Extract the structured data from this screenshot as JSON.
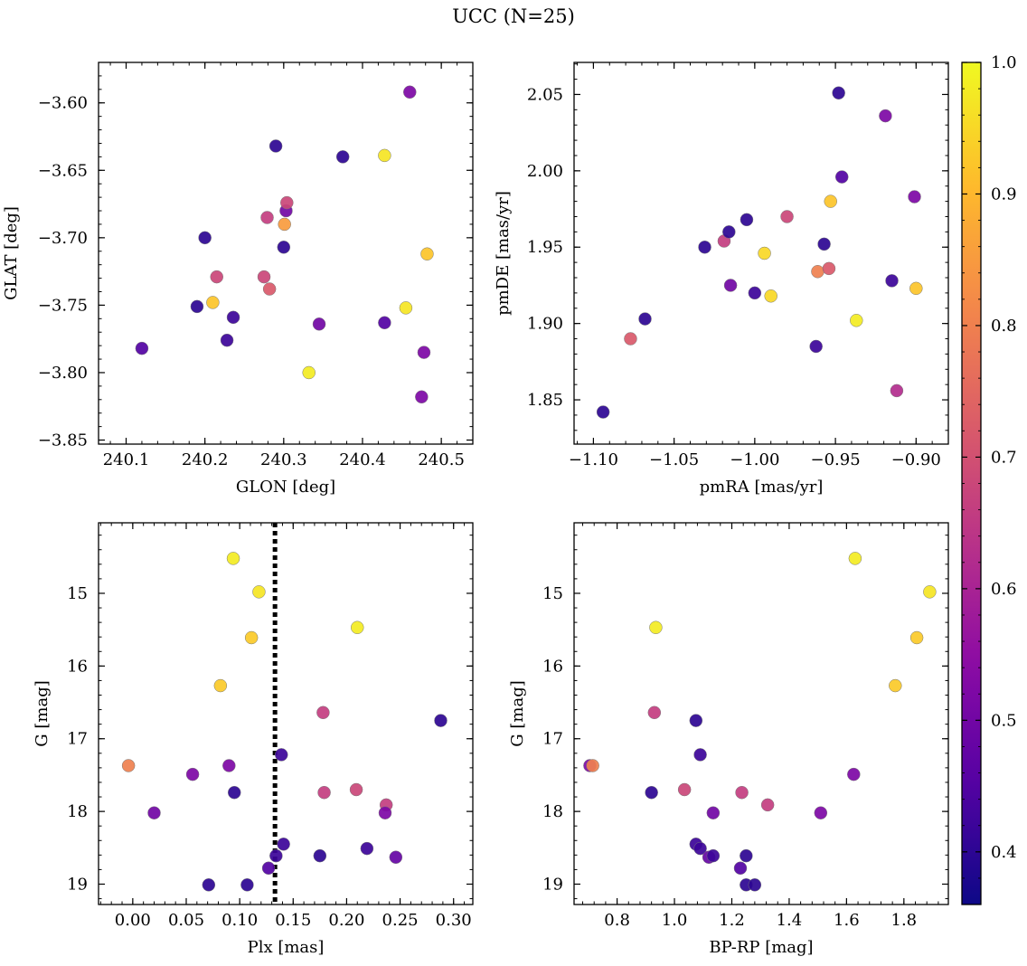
{
  "suptitle": "UCC (N=25)",
  "colorbar": {
    "range": [
      0.36,
      1.0
    ],
    "ticks": [
      0.4,
      0.5,
      0.6,
      0.7,
      0.8,
      0.9,
      1.0
    ],
    "colormap": "plasma"
  },
  "chart_data": [
    {
      "type": "scatter",
      "title": "",
      "xlabel": "GLON [deg]",
      "ylabel": "GLAT [deg]",
      "xlim": [
        240.065,
        240.54
      ],
      "ylim": [
        -3.853,
        -3.57
      ],
      "xticks": [
        240.1,
        240.2,
        240.3,
        240.4,
        240.5
      ],
      "yticks": [
        -3.85,
        -3.8,
        -3.75,
        -3.7,
        -3.65,
        -3.6
      ],
      "points": [
        {
          "x": 240.12,
          "y": -3.782,
          "c": 0.45
        },
        {
          "x": 240.19,
          "y": -3.751,
          "c": 0.4
        },
        {
          "x": 240.2,
          "y": -3.7,
          "c": 0.4
        },
        {
          "x": 240.21,
          "y": -3.748,
          "c": 0.92
        },
        {
          "x": 240.215,
          "y": -3.729,
          "c": 0.68
        },
        {
          "x": 240.228,
          "y": -3.776,
          "c": 0.42
        },
        {
          "x": 240.236,
          "y": -3.759,
          "c": 0.42
        },
        {
          "x": 240.275,
          "y": -3.729,
          "c": 0.68
        },
        {
          "x": 240.279,
          "y": -3.685,
          "c": 0.66
        },
        {
          "x": 240.282,
          "y": -3.738,
          "c": 0.72
        },
        {
          "x": 240.29,
          "y": -3.632,
          "c": 0.4
        },
        {
          "x": 240.3,
          "y": -3.707,
          "c": 0.4
        },
        {
          "x": 240.301,
          "y": -3.69,
          "c": 0.85
        },
        {
          "x": 240.303,
          "y": -3.68,
          "c": 0.5
        },
        {
          "x": 240.304,
          "y": -3.674,
          "c": 0.68
        },
        {
          "x": 240.332,
          "y": -3.8,
          "c": 0.98
        },
        {
          "x": 240.345,
          "y": -3.764,
          "c": 0.5
        },
        {
          "x": 240.375,
          "y": -3.64,
          "c": 0.4
        },
        {
          "x": 240.428,
          "y": -3.639,
          "c": 0.97
        },
        {
          "x": 240.428,
          "y": -3.763,
          "c": 0.45
        },
        {
          "x": 240.455,
          "y": -3.752,
          "c": 0.97
        },
        {
          "x": 240.46,
          "y": -3.592,
          "c": 0.52
        },
        {
          "x": 240.475,
          "y": -3.818,
          "c": 0.52
        },
        {
          "x": 240.478,
          "y": -3.785,
          "c": 0.52
        },
        {
          "x": 240.482,
          "y": -3.712,
          "c": 0.92
        }
      ]
    },
    {
      "type": "scatter",
      "title": "",
      "xlabel": "pmRA [mas/yr]",
      "ylabel": "pmDE [mas/yr]",
      "xlim": [
        -1.112,
        -0.88
      ],
      "ylim": [
        1.821,
        2.071
      ],
      "xticks": [
        -1.1,
        -1.05,
        -1.0,
        -0.95,
        -0.9
      ],
      "yticks": [
        1.85,
        1.9,
        1.95,
        2.0,
        2.05
      ],
      "points": [
        {
          "x": -1.094,
          "y": 1.842,
          "c": 0.4
        },
        {
          "x": -1.077,
          "y": 1.89,
          "c": 0.72
        },
        {
          "x": -1.068,
          "y": 1.903,
          "c": 0.4
        },
        {
          "x": -1.031,
          "y": 1.95,
          "c": 0.4
        },
        {
          "x": -1.019,
          "y": 1.954,
          "c": 0.66
        },
        {
          "x": -1.016,
          "y": 1.96,
          "c": 0.4
        },
        {
          "x": -1.015,
          "y": 1.925,
          "c": 0.5
        },
        {
          "x": -1.005,
          "y": 1.968,
          "c": 0.4
        },
        {
          "x": -1.0,
          "y": 1.92,
          "c": 0.42
        },
        {
          "x": -0.994,
          "y": 1.946,
          "c": 0.95
        },
        {
          "x": -0.99,
          "y": 1.918,
          "c": 0.95
        },
        {
          "x": -0.98,
          "y": 1.97,
          "c": 0.68
        },
        {
          "x": -0.962,
          "y": 1.885,
          "c": 0.42
        },
        {
          "x": -0.961,
          "y": 1.934,
          "c": 0.8
        },
        {
          "x": -0.957,
          "y": 1.952,
          "c": 0.4
        },
        {
          "x": -0.954,
          "y": 1.936,
          "c": 0.72
        },
        {
          "x": -0.953,
          "y": 1.98,
          "c": 0.92
        },
        {
          "x": -0.948,
          "y": 2.051,
          "c": 0.4
        },
        {
          "x": -0.946,
          "y": 1.996,
          "c": 0.45
        },
        {
          "x": -0.937,
          "y": 1.902,
          "c": 0.98
        },
        {
          "x": -0.919,
          "y": 2.036,
          "c": 0.52
        },
        {
          "x": -0.915,
          "y": 1.928,
          "c": 0.42
        },
        {
          "x": -0.912,
          "y": 1.856,
          "c": 0.62
        },
        {
          "x": -0.901,
          "y": 1.983,
          "c": 0.52
        },
        {
          "x": -0.9,
          "y": 1.923,
          "c": 0.92
        }
      ]
    },
    {
      "type": "scatter",
      "title": "",
      "xlabel": "Plx [mas]",
      "ylabel": "G [mag]",
      "xlim": [
        -0.032,
        0.318
      ],
      "ylim": [
        19.28,
        14.03
      ],
      "y_inverted": true,
      "xticks": [
        0.0,
        0.05,
        0.1,
        0.15,
        0.2,
        0.25,
        0.3
      ],
      "yticks": [
        15,
        16,
        17,
        18,
        19
      ],
      "vline": {
        "x": 0.133,
        "style": "dotted",
        "color": "#000000"
      },
      "points": [
        {
          "x": 0.094,
          "y": 14.52,
          "c": 0.98
        },
        {
          "x": 0.118,
          "y": 14.98,
          "c": 0.97
        },
        {
          "x": 0.21,
          "y": 15.47,
          "c": 0.98
        },
        {
          "x": 0.111,
          "y": 15.61,
          "c": 0.93
        },
        {
          "x": 0.082,
          "y": 16.27,
          "c": 0.93
        },
        {
          "x": 0.178,
          "y": 16.64,
          "c": 0.66
        },
        {
          "x": 0.288,
          "y": 16.75,
          "c": 0.4
        },
        {
          "x": 0.139,
          "y": 17.22,
          "c": 0.42
        },
        {
          "x": -0.004,
          "y": 17.37,
          "c": 0.8
        },
        {
          "x": 0.09,
          "y": 17.37,
          "c": 0.52
        },
        {
          "x": 0.056,
          "y": 17.49,
          "c": 0.52
        },
        {
          "x": 0.209,
          "y": 17.7,
          "c": 0.68
        },
        {
          "x": 0.095,
          "y": 17.74,
          "c": 0.4
        },
        {
          "x": 0.179,
          "y": 17.74,
          "c": 0.66
        },
        {
          "x": 0.237,
          "y": 17.91,
          "c": 0.66
        },
        {
          "x": 0.02,
          "y": 18.02,
          "c": 0.5
        },
        {
          "x": 0.236,
          "y": 18.02,
          "c": 0.52
        },
        {
          "x": 0.141,
          "y": 18.45,
          "c": 0.42
        },
        {
          "x": 0.219,
          "y": 18.51,
          "c": 0.42
        },
        {
          "x": 0.134,
          "y": 18.61,
          "c": 0.42
        },
        {
          "x": 0.175,
          "y": 18.61,
          "c": 0.4
        },
        {
          "x": 0.246,
          "y": 18.63,
          "c": 0.48
        },
        {
          "x": 0.127,
          "y": 18.78,
          "c": 0.45
        },
        {
          "x": 0.071,
          "y": 19.01,
          "c": 0.4
        },
        {
          "x": 0.107,
          "y": 19.01,
          "c": 0.4
        }
      ]
    },
    {
      "type": "scatter",
      "title": "",
      "xlabel": "BP-RP [mag]",
      "ylabel": "G [mag]",
      "xlim": [
        0.65,
        1.955
      ],
      "ylim": [
        19.28,
        14.03
      ],
      "y_inverted": true,
      "xticks": [
        0.8,
        1.0,
        1.2,
        1.4,
        1.6,
        1.8
      ],
      "yticks": [
        15,
        16,
        17,
        18,
        19
      ],
      "points": [
        {
          "x": 1.63,
          "y": 14.52,
          "c": 0.98
        },
        {
          "x": 1.89,
          "y": 14.98,
          "c": 0.97
        },
        {
          "x": 0.935,
          "y": 15.47,
          "c": 0.98
        },
        {
          "x": 1.845,
          "y": 15.61,
          "c": 0.93
        },
        {
          "x": 1.77,
          "y": 16.27,
          "c": 0.93
        },
        {
          "x": 0.93,
          "y": 16.64,
          "c": 0.66
        },
        {
          "x": 1.075,
          "y": 16.75,
          "c": 0.4
        },
        {
          "x": 1.09,
          "y": 17.22,
          "c": 0.42
        },
        {
          "x": 0.705,
          "y": 17.37,
          "c": 0.52
        },
        {
          "x": 0.715,
          "y": 17.37,
          "c": 0.8
        },
        {
          "x": 1.625,
          "y": 17.49,
          "c": 0.52
        },
        {
          "x": 1.035,
          "y": 17.7,
          "c": 0.68
        },
        {
          "x": 0.92,
          "y": 17.74,
          "c": 0.4
        },
        {
          "x": 1.235,
          "y": 17.74,
          "c": 0.66
        },
        {
          "x": 1.325,
          "y": 17.91,
          "c": 0.66
        },
        {
          "x": 1.135,
          "y": 18.02,
          "c": 0.5
        },
        {
          "x": 1.51,
          "y": 18.02,
          "c": 0.52
        },
        {
          "x": 1.075,
          "y": 18.45,
          "c": 0.42
        },
        {
          "x": 1.09,
          "y": 18.51,
          "c": 0.42
        },
        {
          "x": 1.12,
          "y": 18.63,
          "c": 0.48
        },
        {
          "x": 1.135,
          "y": 18.61,
          "c": 0.42
        },
        {
          "x": 1.25,
          "y": 18.61,
          "c": 0.4
        },
        {
          "x": 1.23,
          "y": 18.78,
          "c": 0.45
        },
        {
          "x": 1.25,
          "y": 19.01,
          "c": 0.4
        },
        {
          "x": 1.28,
          "y": 19.01,
          "c": 0.4
        }
      ]
    }
  ]
}
